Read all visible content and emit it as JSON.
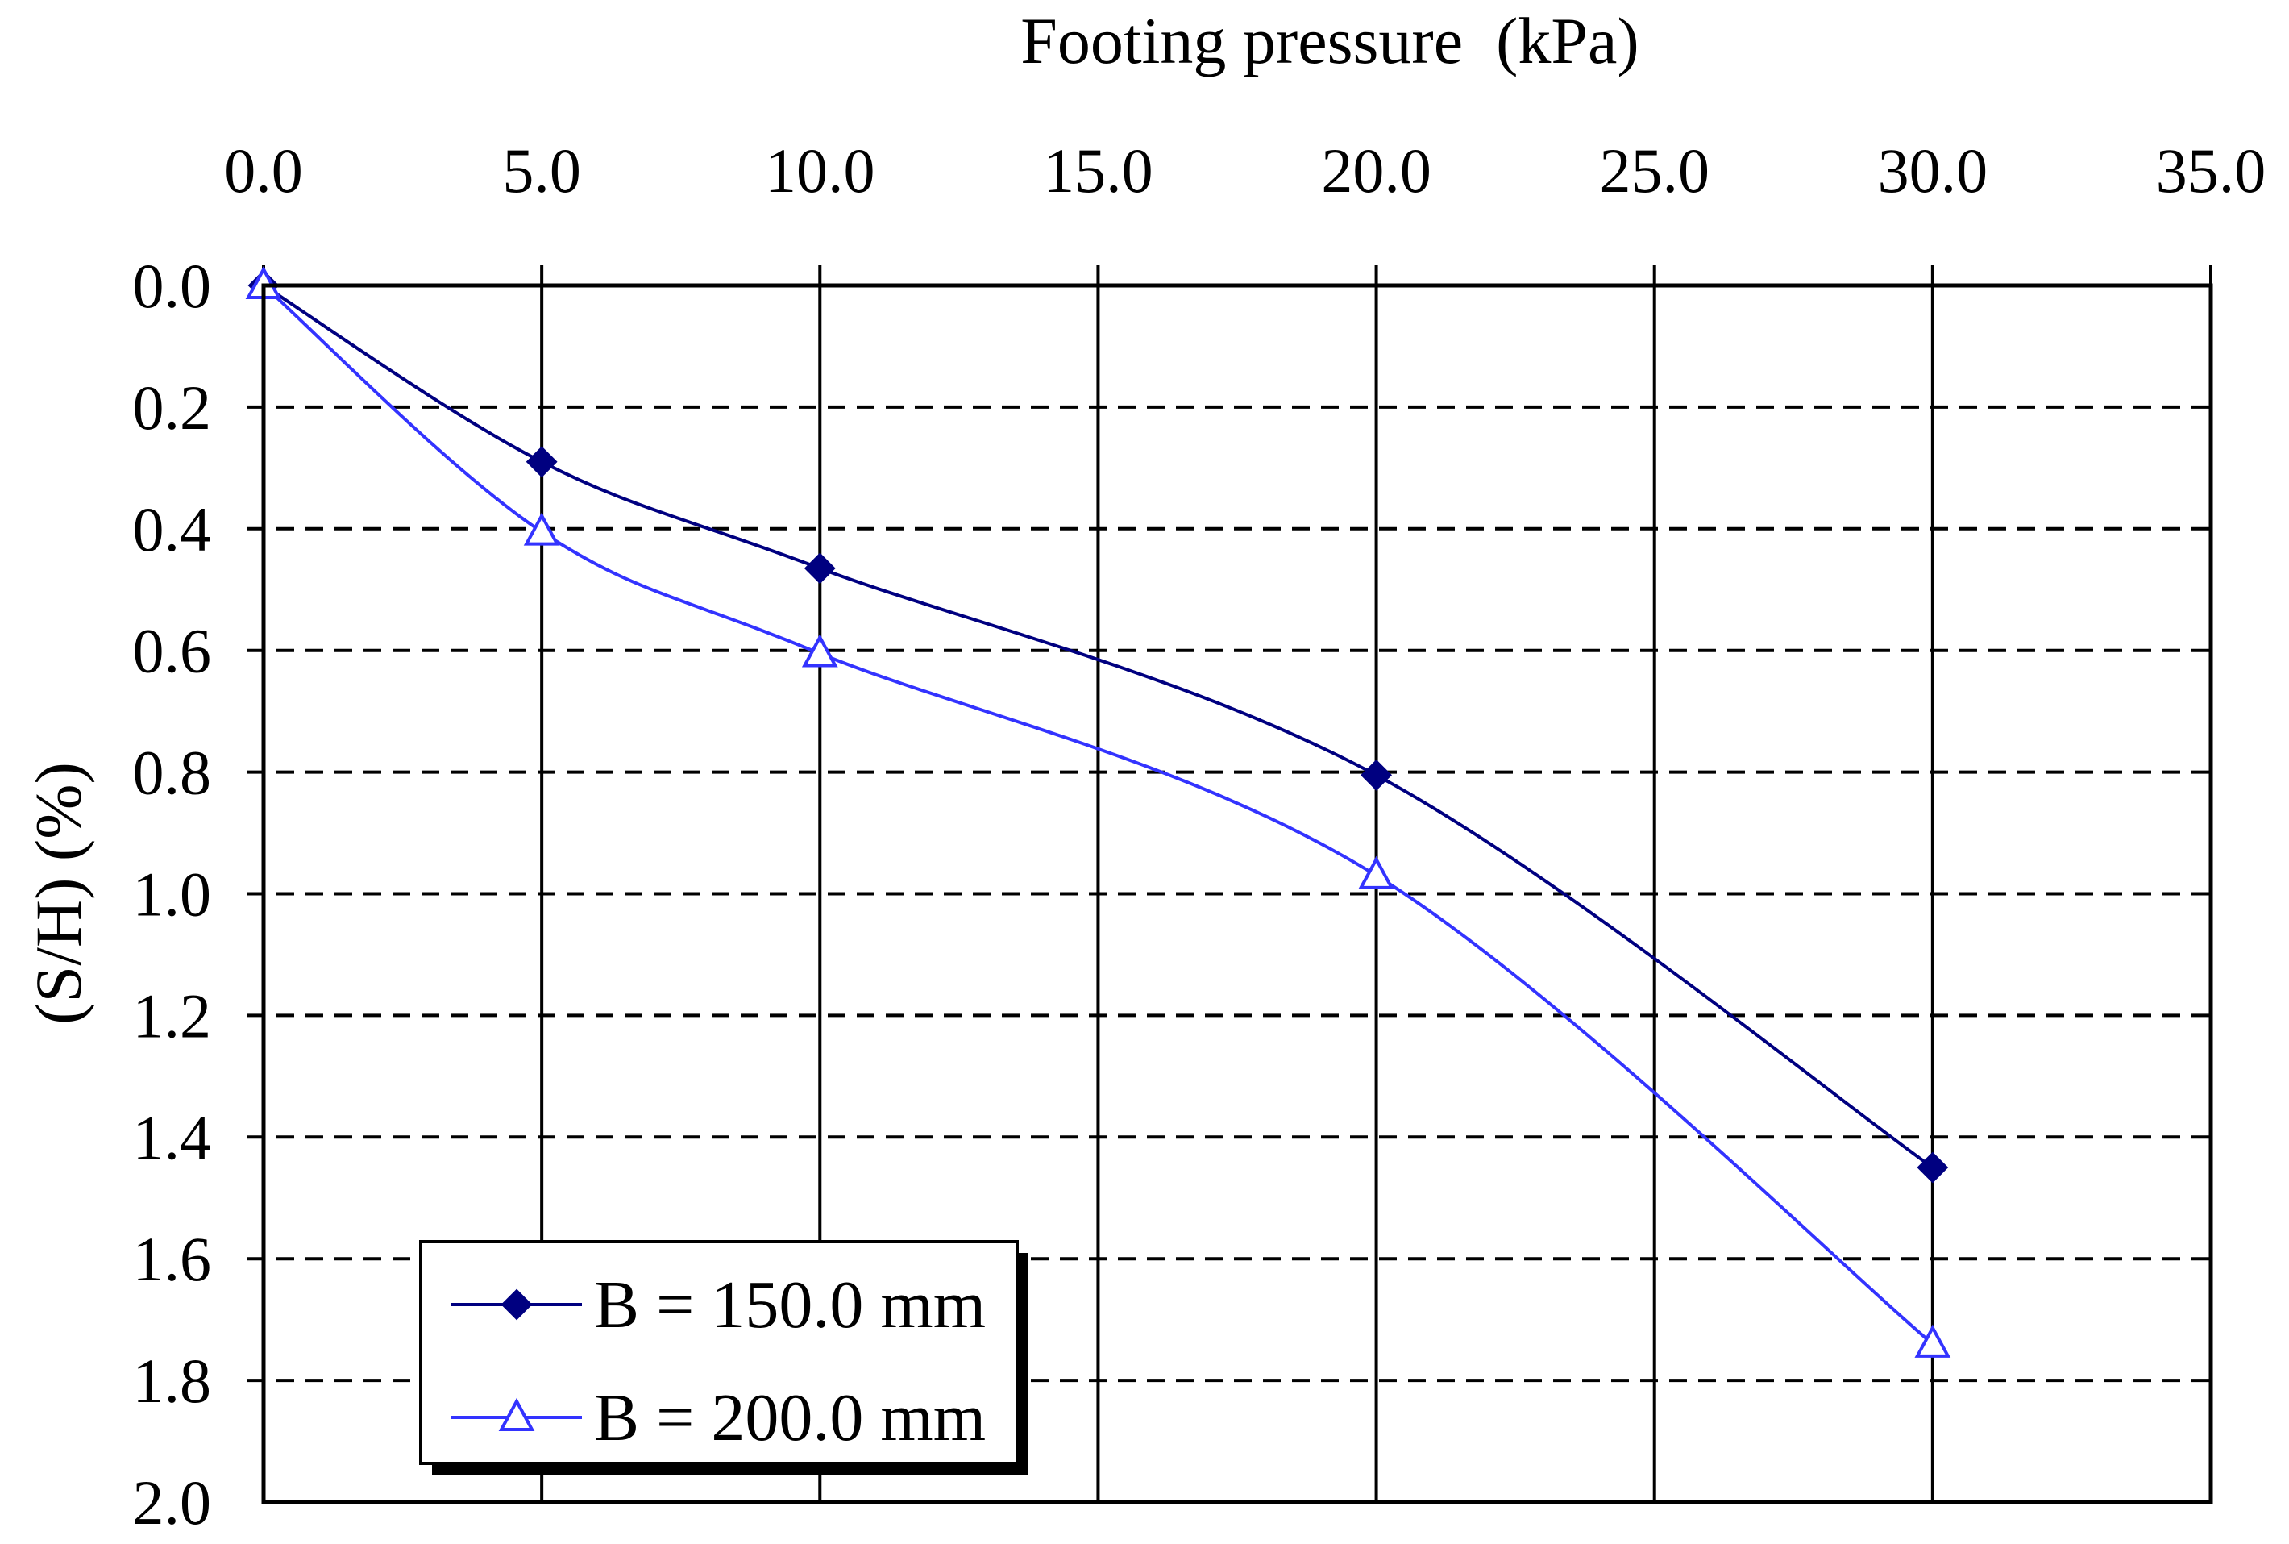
{
  "chart_data": {
    "type": "line",
    "title": "",
    "xlabel": "Footing pressure  (kPa)",
    "ylabel": "(S/H) (%)",
    "xlim": [
      0,
      35
    ],
    "ylim": [
      0,
      2.0
    ],
    "y_inverted": true,
    "x_axis_position": "top",
    "x_ticks": [
      "0.0",
      "5.0",
      "10.0",
      "15.0",
      "20.0",
      "25.0",
      "30.0",
      "35.0"
    ],
    "y_ticks": [
      "0.0",
      "0.2",
      "0.4",
      "0.6",
      "0.8",
      "1.0",
      "1.2",
      "1.4",
      "1.6",
      "1.8",
      "2.0"
    ],
    "grid": {
      "vertical": "solid",
      "horizontal": "dashed"
    },
    "legend_position": "bottom-left",
    "series": [
      {
        "name": "B = 150.0 mm",
        "marker": "diamond-filled",
        "color": "#000080",
        "x": [
          0,
          5,
          10,
          20,
          30
        ],
        "y": [
          0.0,
          0.29,
          0.465,
          0.805,
          1.45
        ]
      },
      {
        "name": "B = 200.0 mm",
        "marker": "triangle-open",
        "color": "#3333ff",
        "x": [
          0,
          5,
          10,
          20,
          30
        ],
        "y": [
          0.0,
          0.405,
          0.605,
          0.97,
          1.74
        ]
      }
    ]
  }
}
